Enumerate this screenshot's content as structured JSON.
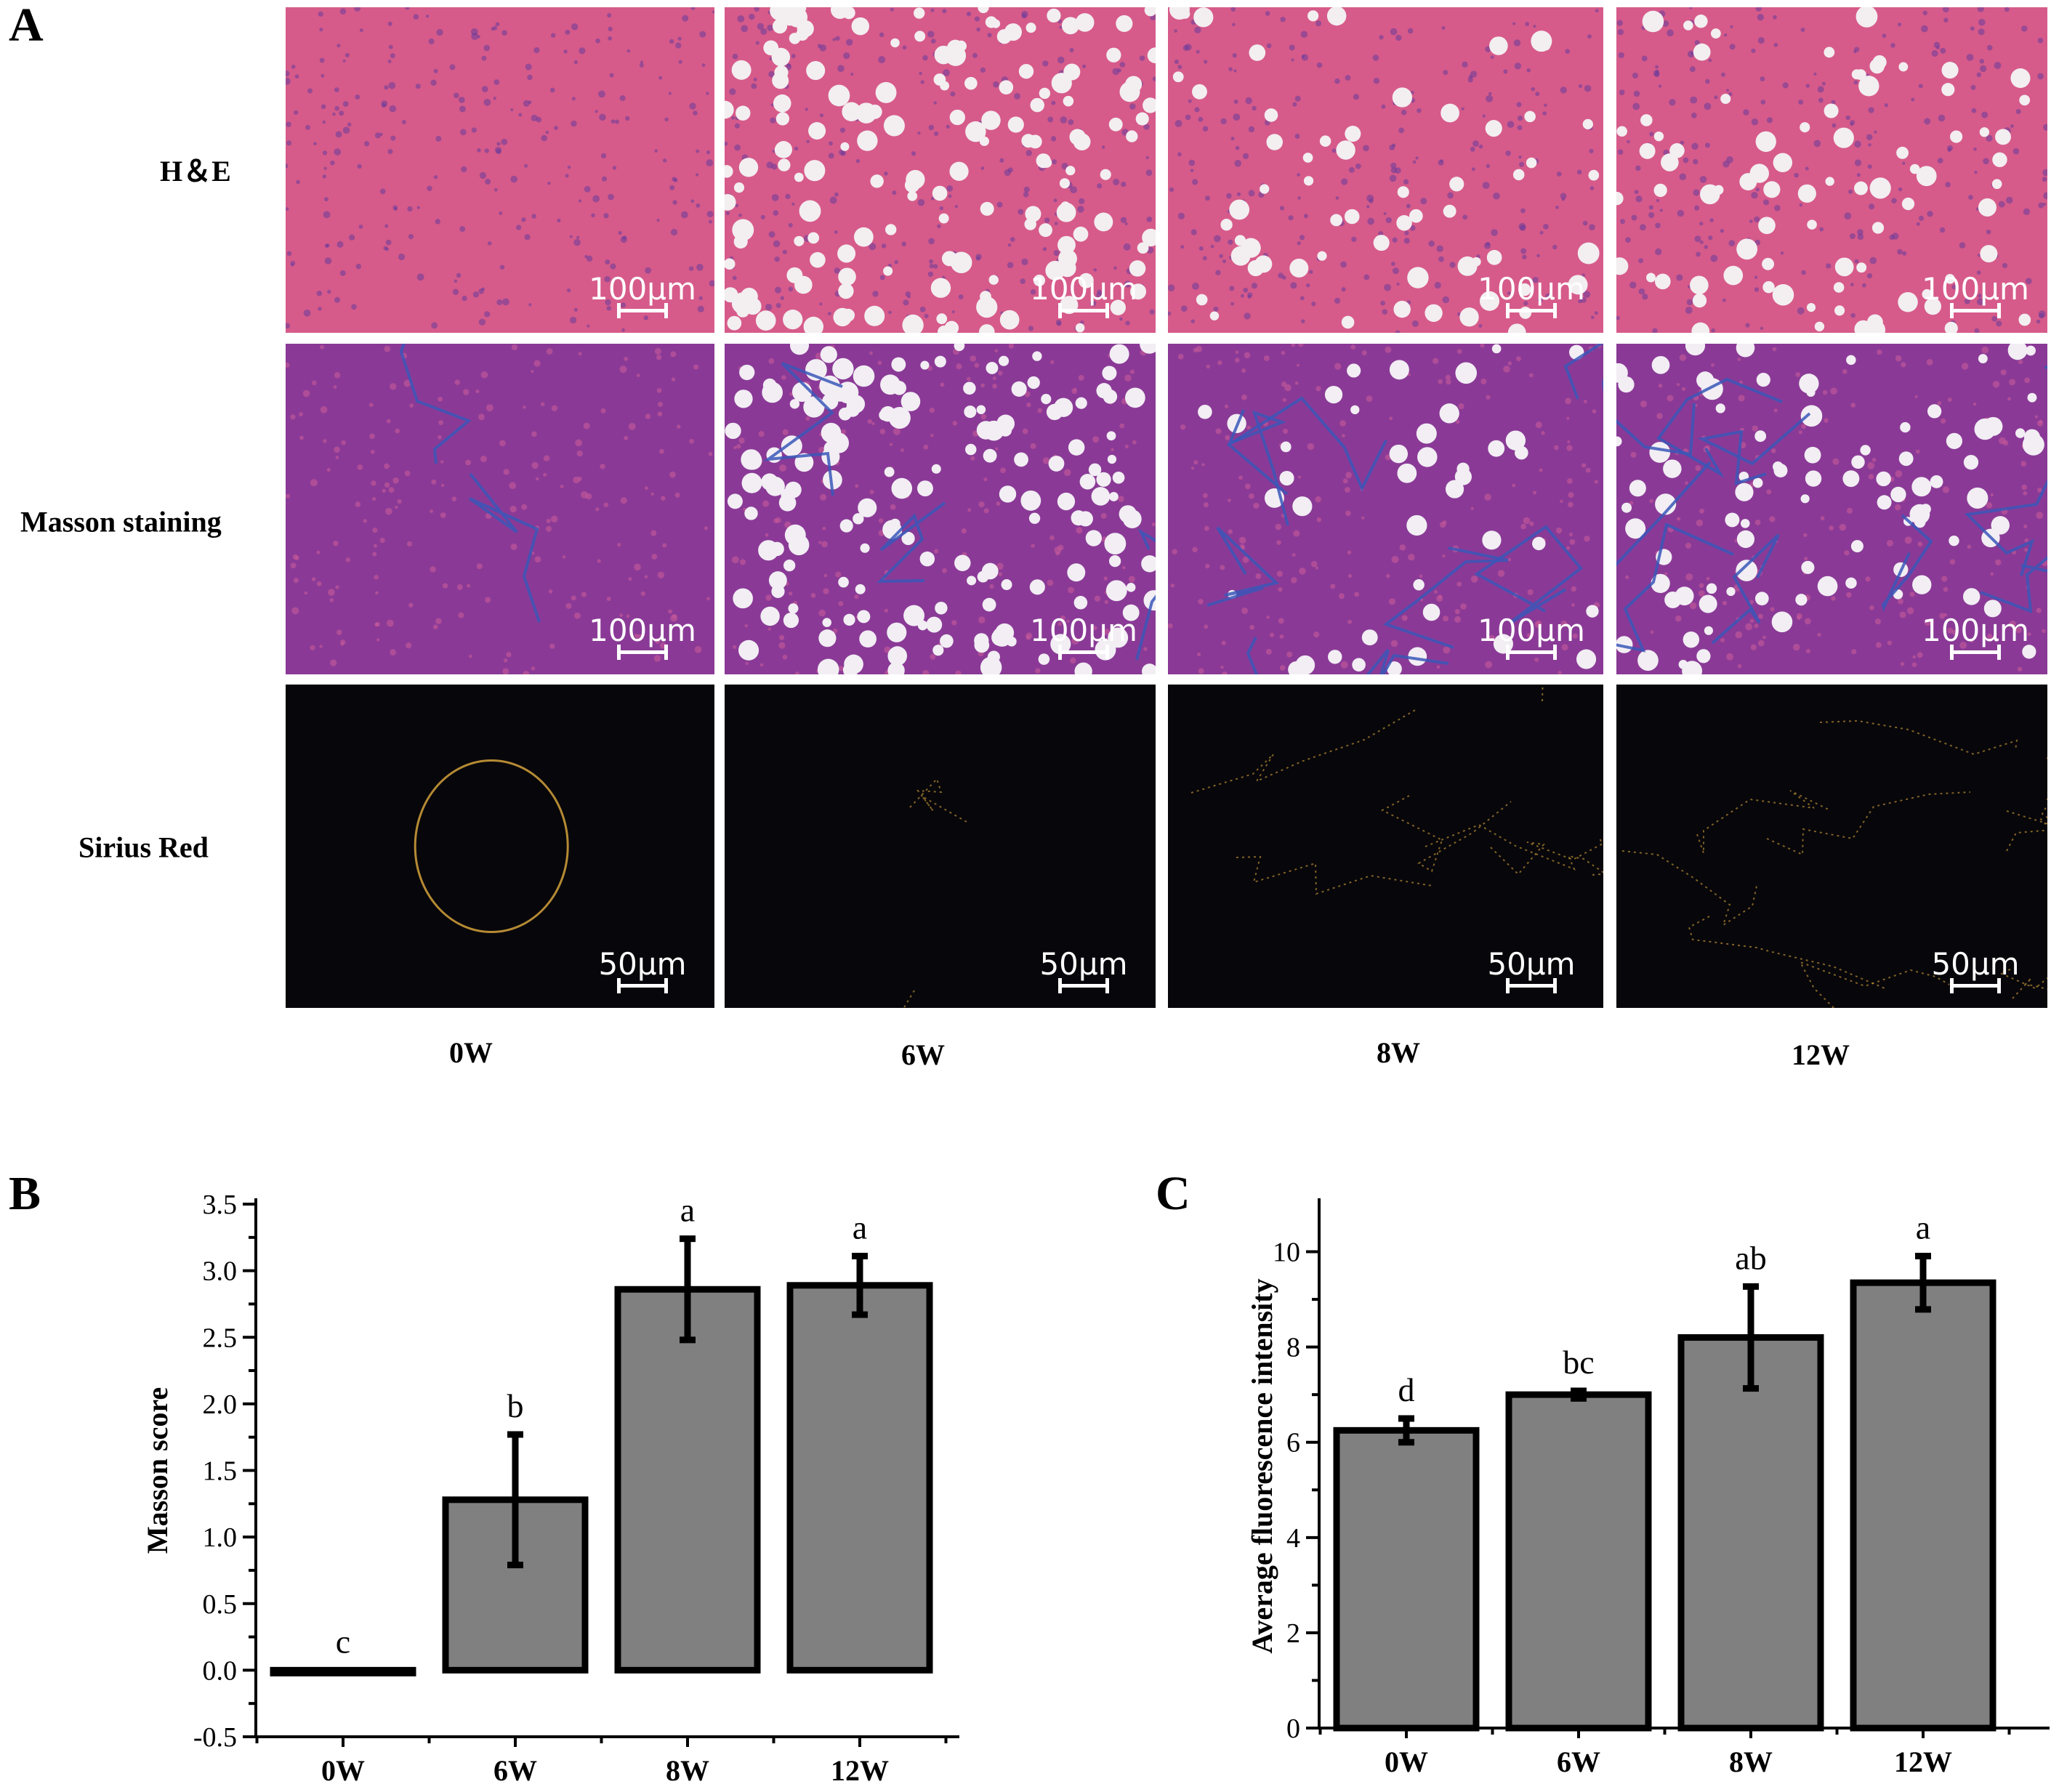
{
  "panel_letters": {
    "a": "A",
    "b": "B",
    "c": "C"
  },
  "figure_a": {
    "rows": [
      "H＆E",
      "Masson staining",
      "Sirius Red"
    ],
    "columns": [
      "0W",
      "6W",
      "8W",
      "12W"
    ],
    "scale_bars": [
      "100μm",
      "100μm",
      "50μm"
    ],
    "colors": {
      "he": "#d65b8a",
      "masson": "#8a3a96",
      "masson_fiber": "#3a57b8",
      "sirius": "#07060a",
      "sirius_fiber": "#d4a23c"
    }
  },
  "chart_data": [
    {
      "type": "bar",
      "categories": [
        "0W",
        "6W",
        "8W",
        "12W"
      ],
      "values": [
        0.0,
        1.28,
        2.86,
        2.89
      ],
      "errors": [
        0.0,
        0.49,
        0.38,
        0.22
      ],
      "annotations": [
        "c",
        "b",
        "a",
        "a"
      ],
      "ylabel": "Masson score",
      "xlabel": "",
      "ylim": [
        -0.5,
        3.5
      ],
      "yticks": [
        -0.5,
        0.0,
        0.5,
        1.0,
        1.5,
        2.0,
        2.5,
        3.0,
        3.5
      ],
      "ytick_labels": [
        "-0.5",
        "0.0",
        "0.5",
        "1.0",
        "1.5",
        "2.0",
        "2.5",
        "3.0",
        "3.5"
      ],
      "bar_color": "#808080"
    },
    {
      "type": "bar",
      "categories": [
        "0W",
        "6W",
        "8W",
        "12W"
      ],
      "values": [
        6.25,
        7.0,
        8.2,
        9.35
      ],
      "errors": [
        0.25,
        0.08,
        1.07,
        0.56
      ],
      "annotations": [
        "d",
        "bc",
        "ab",
        "a"
      ],
      "ylabel": "Average fluorescence intensity",
      "xlabel": "",
      "ylim": [
        0,
        11
      ],
      "yticks": [
        0,
        2,
        4,
        6,
        8,
        10
      ],
      "ytick_labels": [
        "0",
        "2",
        "4",
        "6",
        "8",
        "10"
      ],
      "bar_color": "#808080"
    }
  ]
}
